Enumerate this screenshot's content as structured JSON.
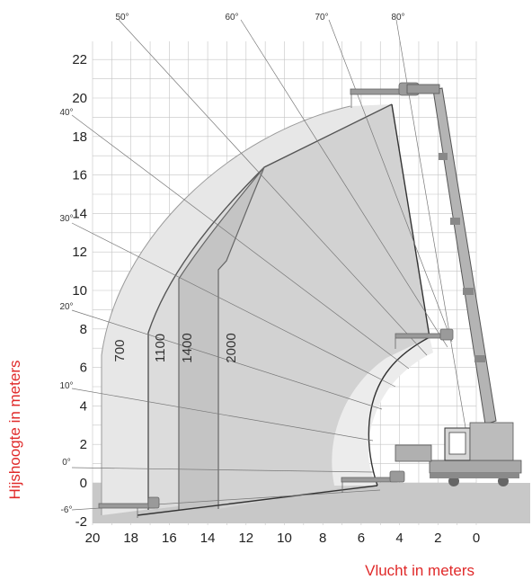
{
  "x_axis": {
    "title": "Vlucht in meters",
    "ticks": [
      "20",
      "18",
      "16",
      "14",
      "12",
      "10",
      "8",
      "6",
      "4",
      "2",
      "0"
    ]
  },
  "y_axis": {
    "title": "Hijshoogte in meters",
    "ticks": [
      "22",
      "20",
      "18",
      "16",
      "14",
      "12",
      "10",
      "8",
      "6",
      "4",
      "2",
      "0",
      "-2"
    ]
  },
  "angles": [
    "80°",
    "70°",
    "60°",
    "50°",
    "40°",
    "30°",
    "20°",
    "10°",
    "0°",
    "-6°"
  ],
  "capacities": [
    "700",
    "1100",
    "1400",
    "2000"
  ],
  "colors": {
    "zone_700": "#e6e6e6",
    "zone_1100": "#d9d9d9",
    "zone_1400": "#c6c6c6",
    "zone_2000": "#d4d4d4",
    "ground": "#c8c8c8",
    "grid": "#b8b8b8",
    "axis_title": "#e02a2a",
    "machine": "#a9a9a9"
  }
}
